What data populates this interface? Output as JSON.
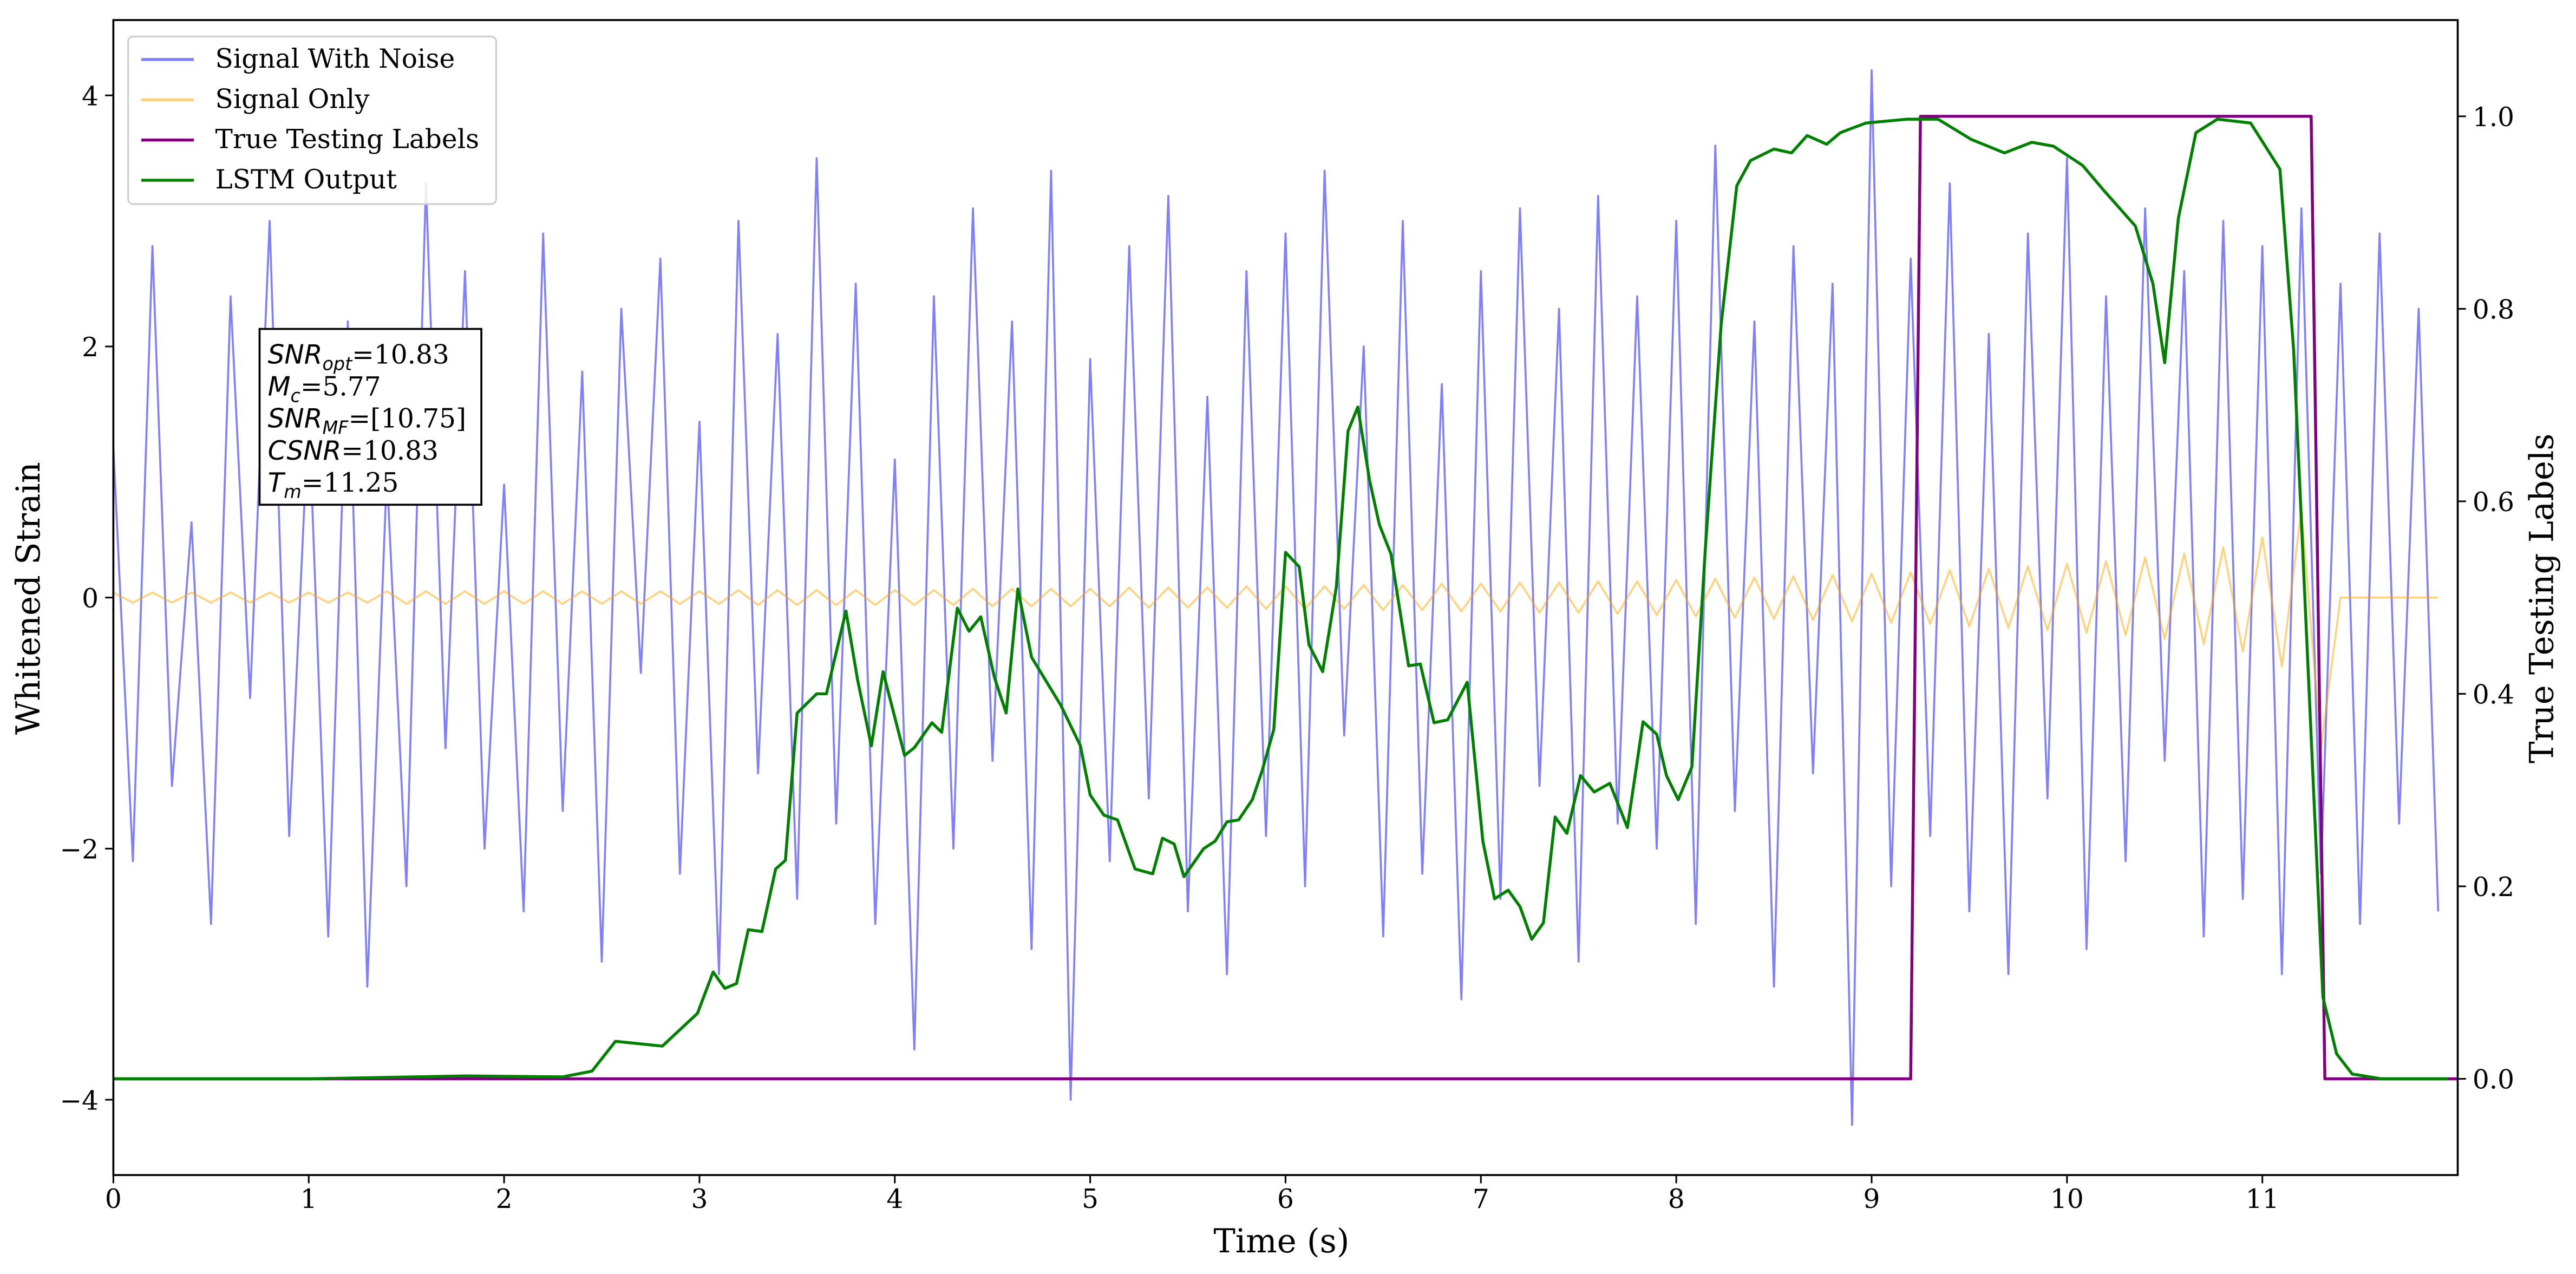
{
  "chart_data": {
    "type": "line",
    "xlabel": "Time (s)",
    "ylabel": "Whitened Strain",
    "y2label": "True Testing Labels",
    "xlim": [
      0,
      12
    ],
    "ylim": [
      -4.6,
      4.6
    ],
    "y2lim": [
      -0.1,
      1.1
    ],
    "xticks": [
      0,
      1,
      2,
      3,
      4,
      5,
      6,
      7,
      8,
      9,
      10,
      11
    ],
    "yticks": [
      {
        "value": -4,
        "label": "−4"
      },
      {
        "value": -2,
        "label": "−2"
      },
      0,
      2,
      4
    ],
    "y2ticks": [
      {
        "value": 0,
        "label": "0.0"
      },
      {
        "value": 0.2,
        "label": "0.2"
      },
      {
        "value": 0.4,
        "label": "0.4"
      },
      {
        "value": 0.6,
        "label": "0.6"
      },
      {
        "value": 0.8,
        "label": "0.8"
      },
      {
        "value": 1.0,
        "label": "1.0"
      }
    ],
    "legend": "upper left",
    "series": [
      {
        "name": "Signal With Noise",
        "color": "#0000ff",
        "opacity": 0.5,
        "axis": "y",
        "x": [
          0,
          0.1,
          0.2,
          0.3,
          0.4,
          0.5,
          0.6,
          0.7,
          0.8,
          0.9,
          1,
          1.1,
          1.2,
          1.3,
          1.4,
          1.5,
          1.6,
          1.7,
          1.8,
          1.9,
          2,
          2.1,
          2.2,
          2.3,
          2.4,
          2.5,
          2.6,
          2.7,
          2.8,
          2.9,
          3,
          3.1,
          3.2,
          3.3,
          3.4,
          3.5,
          3.6,
          3.7,
          3.8,
          3.9,
          4,
          4.1,
          4.2,
          4.3,
          4.4,
          4.5,
          4.6,
          4.7,
          4.8,
          4.9,
          5,
          5.1,
          5.2,
          5.3,
          5.4,
          5.5,
          5.6,
          5.7,
          5.8,
          5.9,
          6,
          6.1,
          6.2,
          6.3,
          6.4,
          6.5,
          6.6,
          6.7,
          6.8,
          6.9,
          7,
          7.1,
          7.2,
          7.3,
          7.4,
          7.5,
          7.6,
          7.7,
          7.8,
          7.9,
          8,
          8.1,
          8.2,
          8.3,
          8.4,
          8.5,
          8.6,
          8.7,
          8.8,
          8.9,
          9,
          9.1,
          9.2,
          9.3,
          9.4,
          9.5,
          9.6,
          9.7,
          9.8,
          9.9,
          10,
          10.1,
          10.2,
          10.3,
          10.4,
          10.5,
          10.6,
          10.7,
          10.8,
          10.9,
          11,
          11.1,
          11.2,
          11.3,
          11.4,
          11.5,
          11.6,
          11.7,
          11.8,
          11.9
        ],
        "values": [
          1.2,
          -2.1,
          2.8,
          -1.5,
          0.6,
          -2.6,
          2.4,
          -0.8,
          3.0,
          -1.9,
          1.5,
          -2.7,
          2.2,
          -3.1,
          1.0,
          -2.3,
          3.3,
          -1.2,
          2.6,
          -2.0,
          0.9,
          -2.5,
          2.9,
          -1.7,
          1.8,
          -2.9,
          2.3,
          -0.6,
          2.7,
          -2.2,
          1.4,
          -3.0,
          3.0,
          -1.4,
          2.1,
          -2.4,
          3.5,
          -1.8,
          2.5,
          -2.6,
          1.1,
          -3.6,
          2.4,
          -2.0,
          3.1,
          -1.3,
          2.2,
          -2.8,
          3.4,
          -4.0,
          1.9,
          -2.1,
          2.8,
          -1.6,
          3.2,
          -2.5,
          1.6,
          -3.0,
          2.6,
          -1.9,
          2.9,
          -2.3,
          3.4,
          -1.1,
          2.0,
          -2.7,
          3.0,
          -2.2,
          1.7,
          -3.2,
          2.6,
          -2.4,
          3.1,
          -1.5,
          2.3,
          -2.9,
          3.2,
          -1.8,
          2.4,
          -2.0,
          3.0,
          -2.6,
          3.6,
          -1.7,
          2.2,
          -3.1,
          2.8,
          -1.4,
          2.5,
          -4.2,
          4.2,
          -2.3,
          2.7,
          -1.9,
          3.3,
          -2.5,
          2.1,
          -3.0,
          2.9,
          -1.6,
          3.5,
          -2.8,
          2.4,
          -2.1,
          3.1,
          -1.3,
          2.6,
          -2.7,
          3.0,
          -2.4,
          2.8,
          -3.0,
          3.1,
          -2.2,
          2.5,
          -2.6,
          2.9,
          -1.8,
          2.3,
          -2.5
        ]
      },
      {
        "name": "Signal Only",
        "color": "#ffa500",
        "opacity": 0.5,
        "axis": "y",
        "x": [
          0,
          0.1,
          0.2,
          0.3,
          0.4,
          0.5,
          0.6,
          0.7,
          0.8,
          0.9,
          1,
          1.1,
          1.2,
          1.3,
          1.4,
          1.5,
          1.6,
          1.7,
          1.8,
          1.9,
          2,
          2.1,
          2.2,
          2.3,
          2.4,
          2.5,
          2.6,
          2.7,
          2.8,
          2.9,
          3,
          3.1,
          3.2,
          3.3,
          3.4,
          3.5,
          3.6,
          3.7,
          3.8,
          3.9,
          4,
          4.1,
          4.2,
          4.3,
          4.4,
          4.5,
          4.6,
          4.7,
          4.8,
          4.9,
          5,
          5.1,
          5.2,
          5.3,
          5.4,
          5.5,
          5.6,
          5.7,
          5.8,
          5.9,
          6,
          6.1,
          6.2,
          6.3,
          6.4,
          6.5,
          6.6,
          6.7,
          6.8,
          6.9,
          7,
          7.1,
          7.2,
          7.3,
          7.4,
          7.5,
          7.6,
          7.7,
          7.8,
          7.9,
          8,
          8.1,
          8.2,
          8.3,
          8.4,
          8.5,
          8.6,
          8.7,
          8.8,
          8.9,
          9,
          9.1,
          9.2,
          9.3,
          9.4,
          9.5,
          9.6,
          9.7,
          9.8,
          9.9,
          10,
          10.1,
          10.2,
          10.3,
          10.4,
          10.5,
          10.6,
          10.7,
          10.8,
          10.9,
          11,
          11.1,
          11.2,
          11.3,
          11.4,
          11.5,
          11.6,
          11.7,
          11.8,
          11.9
        ],
        "values": [
          0.04,
          -0.04,
          0.04,
          -0.04,
          0.04,
          -0.04,
          0.04,
          -0.04,
          0.04,
          -0.04,
          0.04,
          -0.04,
          0.04,
          -0.04,
          0.05,
          -0.05,
          0.05,
          -0.05,
          0.05,
          -0.05,
          0.05,
          -0.05,
          0.05,
          -0.05,
          0.05,
          -0.05,
          0.05,
          -0.05,
          0.05,
          -0.05,
          0.05,
          -0.05,
          0.06,
          -0.06,
          0.06,
          -0.06,
          0.06,
          -0.06,
          0.06,
          -0.06,
          0.06,
          -0.06,
          0.06,
          -0.06,
          0.07,
          -0.07,
          0.07,
          -0.07,
          0.07,
          -0.07,
          0.07,
          -0.07,
          0.08,
          -0.08,
          0.08,
          -0.08,
          0.08,
          -0.08,
          0.09,
          -0.09,
          0.09,
          -0.09,
          0.09,
          -0.09,
          0.1,
          -0.1,
          0.1,
          -0.1,
          0.11,
          -0.11,
          0.11,
          -0.11,
          0.12,
          -0.12,
          0.12,
          -0.12,
          0.13,
          -0.13,
          0.13,
          -0.14,
          0.14,
          -0.15,
          0.15,
          -0.16,
          0.16,
          -0.17,
          0.17,
          -0.18,
          0.18,
          -0.19,
          0.19,
          -0.2,
          0.2,
          -0.21,
          0.22,
          -0.23,
          0.23,
          -0.24,
          0.25,
          -0.26,
          0.27,
          -0.28,
          0.29,
          -0.3,
          0.32,
          -0.33,
          0.35,
          -0.37,
          0.4,
          -0.43,
          0.48,
          -0.55,
          0.7,
          -1.2,
          0,
          0,
          0,
          0,
          0,
          0
        ]
      },
      {
        "name": "True Testing Labels",
        "color": "#800080",
        "opacity": 1,
        "axis": "y2",
        "x": [
          0,
          9.2,
          9.25,
          11.25,
          11.32,
          12
        ],
        "values": [
          0,
          0,
          1,
          1,
          0,
          0
        ]
      },
      {
        "name": "LSTM Output",
        "color": "#008000",
        "opacity": 1,
        "axis": "y2",
        "x": [
          0,
          1,
          1.8,
          2.3,
          2.45,
          2.57,
          2.81,
          2.9,
          2.99,
          3.07,
          3.13,
          3.19,
          3.25,
          3.32,
          3.39,
          3.44,
          3.5,
          3.6,
          3.65,
          3.75,
          3.81,
          3.88,
          3.94,
          4.05,
          4.1,
          4.19,
          4.24,
          4.32,
          4.38,
          4.44,
          4.51,
          4.57,
          4.63,
          4.7,
          4.85,
          4.95,
          5,
          5.07,
          5.14,
          5.23,
          5.32,
          5.37,
          5.43,
          5.48,
          5.58,
          5.64,
          5.7,
          5.76,
          5.83,
          5.88,
          5.94,
          6,
          6.07,
          6.12,
          6.19,
          6.26,
          6.32,
          6.37,
          6.43,
          6.48,
          6.54,
          6.63,
          6.69,
          6.76,
          6.83,
          6.93,
          7.01,
          7.07,
          7.14,
          7.2,
          7.26,
          7.32,
          7.38,
          7.44,
          7.51,
          7.58,
          7.66,
          7.75,
          7.83,
          7.9,
          7.95,
          8.01,
          8.08,
          8.15,
          8.23,
          8.31,
          8.38,
          8.5,
          8.59,
          8.67,
          8.77,
          8.84,
          8.97,
          9.18,
          9.34,
          9.51,
          9.68,
          9.82,
          9.93,
          10.08,
          10.18,
          10.35,
          10.44,
          10.5,
          10.57,
          10.66,
          10.77,
          10.94,
          11.09,
          11.16,
          11.24,
          11.31,
          11.38,
          11.46,
          11.61,
          11.95
        ],
        "values": [
          0,
          0,
          0.003,
          0.002,
          0.008,
          0.039,
          0.034,
          0.051,
          0.068,
          0.111,
          0.094,
          0.099,
          0.155,
          0.153,
          0.218,
          0.227,
          0.38,
          0.4,
          0.4,
          0.486,
          0.414,
          0.346,
          0.423,
          0.336,
          0.344,
          0.37,
          0.36,
          0.489,
          0.465,
          0.48,
          0.417,
          0.38,
          0.509,
          0.438,
          0.388,
          0.346,
          0.295,
          0.274,
          0.269,
          0.218,
          0.213,
          0.25,
          0.244,
          0.21,
          0.239,
          0.247,
          0.267,
          0.269,
          0.29,
          0.32,
          0.363,
          0.547,
          0.532,
          0.451,
          0.423,
          0.511,
          0.673,
          0.698,
          0.622,
          0.576,
          0.545,
          0.429,
          0.431,
          0.37,
          0.373,
          0.412,
          0.247,
          0.187,
          0.196,
          0.179,
          0.145,
          0.162,
          0.272,
          0.255,
          0.315,
          0.298,
          0.307,
          0.261,
          0.371,
          0.358,
          0.315,
          0.29,
          0.324,
          0.554,
          0.784,
          0.928,
          0.954,
          0.966,
          0.962,
          0.98,
          0.971,
          0.983,
          0.993,
          0.997,
          0.997,
          0.976,
          0.962,
          0.973,
          0.969,
          0.949,
          0.925,
          0.886,
          0.826,
          0.744,
          0.894,
          0.983,
          0.997,
          0.993,
          0.945,
          0.758,
          0.4,
          0.085,
          0.026,
          0.005,
          0,
          0
        ]
      }
    ],
    "annotation": [
      {
        "symbol": "SNR",
        "subscript": "opt",
        "text": "=10.83"
      },
      {
        "symbol": "M",
        "subscript": "c",
        "text": "=5.77"
      },
      {
        "symbol": "SNR",
        "subscript": "MF",
        "text": "=[10.75]"
      },
      {
        "symbol": "CSNR",
        "text": "=10.83"
      },
      {
        "symbol": "T",
        "subscript": "m",
        "text": "=11.25"
      }
    ]
  }
}
